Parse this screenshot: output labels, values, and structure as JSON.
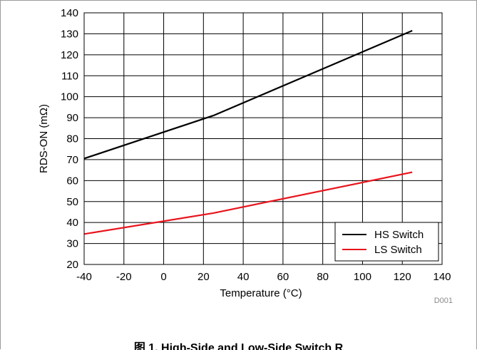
{
  "chart_data": {
    "type": "line",
    "title": "",
    "xlabel": "Temperature (°C)",
    "ylabel": "RDS-ON (mΩ)",
    "xlim": [
      -40,
      140
    ],
    "ylim": [
      20,
      140
    ],
    "x_ticks": [
      -40,
      -20,
      0,
      20,
      40,
      60,
      80,
      100,
      120,
      140
    ],
    "y_ticks": [
      20,
      30,
      40,
      50,
      60,
      70,
      80,
      90,
      100,
      110,
      120,
      130,
      140
    ],
    "grid": true,
    "legend_position": "bottom-right",
    "series": [
      {
        "name": "HS Switch",
        "color": "#000000",
        "x": [
          -40,
          25,
          125
        ],
        "y": [
          70.5,
          91,
          131.5
        ]
      },
      {
        "name": "LS Switch",
        "color": "#e8141c",
        "x": [
          -40,
          25,
          125
        ],
        "y": [
          34.5,
          44.5,
          64
        ]
      }
    ],
    "figure_id": "D001"
  },
  "caption": "图 1. High-Side and Low-Side Switch R"
}
